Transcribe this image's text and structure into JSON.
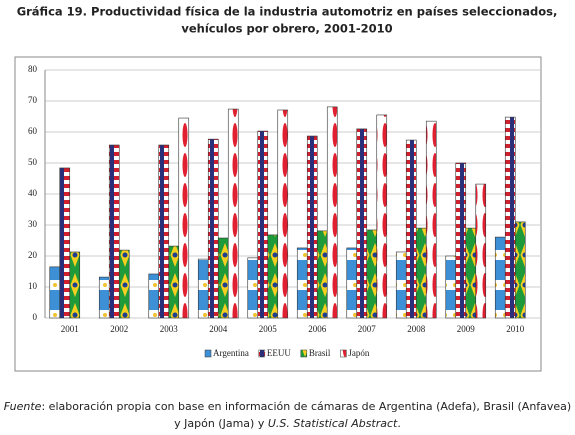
{
  "chart_data": {
    "type": "bar",
    "title": "Gráfica 19. Productividad física de la industria automotriz en países seleccionados,",
    "subtitle": "vehículos por obrero, 2001-2010",
    "categories": [
      "2001",
      "2002",
      "2003",
      "2004",
      "2005",
      "2006",
      "2007",
      "2008",
      "2009",
      "2010"
    ],
    "series": [
      {
        "name": "Argentina",
        "color": "#3d8fd6",
        "values": [
          16.5,
          13.2,
          14.2,
          19,
          19.4,
          22.6,
          22.6,
          21.3,
          20,
          26.1
        ]
      },
      {
        "name": "EEUU",
        "color": "#d0202e",
        "values": [
          48.4,
          55.8,
          55.8,
          57.7,
          60.3,
          58.7,
          61,
          57.4,
          50,
          64.8
        ]
      },
      {
        "name": "Brasil",
        "color": "#1f9a3a",
        "values": [
          21.3,
          21.9,
          23.2,
          25.8,
          26.8,
          28.1,
          28.4,
          29,
          29,
          31
        ]
      },
      {
        "name": "Japón",
        "color": "#ffffff",
        "values": [
          null,
          null,
          64.5,
          67.4,
          67.1,
          68.1,
          65.5,
          63.5,
          43.2,
          null
        ]
      }
    ],
    "ylim": [
      0,
      80
    ],
    "yticks": [
      0,
      10,
      20,
      30,
      40,
      50,
      60,
      70,
      80
    ],
    "grid": true,
    "legend": "bottom",
    "source": {
      "label": "Fuente",
      "text": ": elaboración propia con base en información de cámaras de Argentina (Adefa), Brasil (Anfavea) y Japón (Jama) y ",
      "italic": "U.S. Statistical Abstract",
      "end": "."
    }
  }
}
